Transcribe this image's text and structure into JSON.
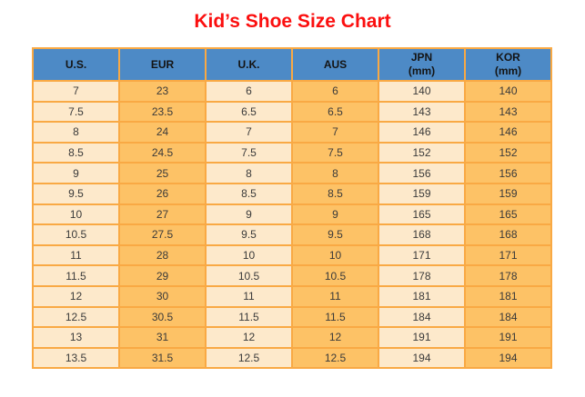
{
  "page": {
    "title": "Kid’s Shoe Size Chart"
  },
  "table": {
    "headers": [
      {
        "key": "us",
        "label": "U.S.",
        "sub": ""
      },
      {
        "key": "eur",
        "label": "EUR",
        "sub": ""
      },
      {
        "key": "uk",
        "label": "U.K.",
        "sub": ""
      },
      {
        "key": "aus",
        "label": "AUS",
        "sub": ""
      },
      {
        "key": "jpn",
        "label": "JPN",
        "sub": "(mm)"
      },
      {
        "key": "kor",
        "label": "KOR",
        "sub": "(mm)"
      }
    ]
  },
  "chart_data": {
    "type": "table",
    "title": "Kid’s Shoe Size Chart",
    "columns": [
      "U.S.",
      "EUR",
      "U.K.",
      "AUS",
      "JPN (mm)",
      "KOR (mm)"
    ],
    "rows": [
      [
        "7",
        "23",
        "6",
        "6",
        "140",
        "140"
      ],
      [
        "7.5",
        "23.5",
        "6.5",
        "6.5",
        "143",
        "143"
      ],
      [
        "8",
        "24",
        "7",
        "7",
        "146",
        "146"
      ],
      [
        "8.5",
        "24.5",
        "7.5",
        "7.5",
        "152",
        "152"
      ],
      [
        "9",
        "25",
        "8",
        "8",
        "156",
        "156"
      ],
      [
        "9.5",
        "26",
        "8.5",
        "8.5",
        "159",
        "159"
      ],
      [
        "10",
        "27",
        "9",
        "9",
        "165",
        "165"
      ],
      [
        "10.5",
        "27.5",
        "9.5",
        "9.5",
        "168",
        "168"
      ],
      [
        "11",
        "28",
        "10",
        "10",
        "171",
        "171"
      ],
      [
        "11.5",
        "29",
        "10.5",
        "10.5",
        "178",
        "178"
      ],
      [
        "12",
        "30",
        "11",
        "11",
        "181",
        "181"
      ],
      [
        "12.5",
        "30.5",
        "11.5",
        "11.5",
        "184",
        "184"
      ],
      [
        "13",
        "31",
        "12",
        "12",
        "191",
        "191"
      ],
      [
        "13.5",
        "31.5",
        "12.5",
        "12.5",
        "194",
        "194"
      ]
    ]
  },
  "colors": {
    "title_red": "#fb0f0f",
    "header_blue": "#4d8ac6",
    "column_light": "#fde9cb",
    "column_orange": "#fdc266",
    "grid_orange": "#f9a944",
    "cell_text": "#3a3a3a",
    "header_text": "#141414",
    "background": "#ffffff"
  }
}
